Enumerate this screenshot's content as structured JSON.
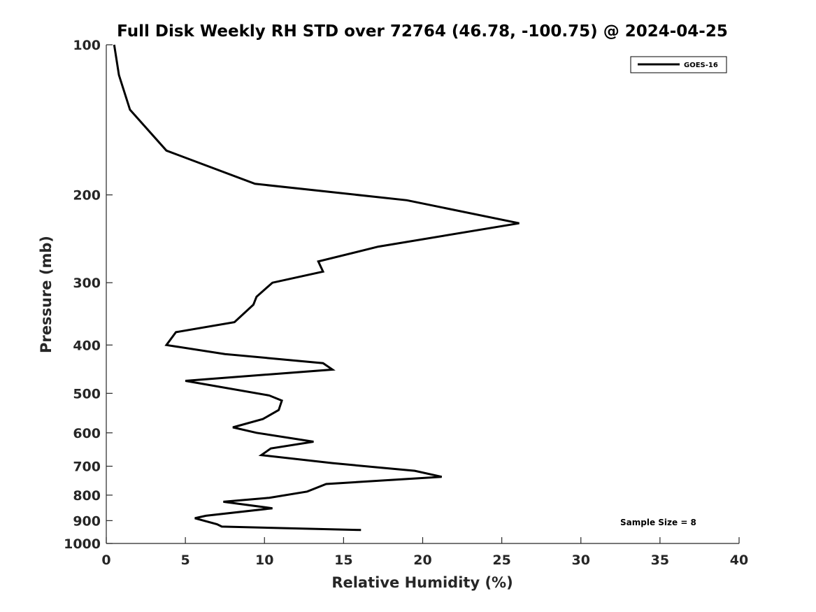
{
  "chart_data": {
    "type": "line",
    "title": "Full Disk Weekly RH STD over 72764 (46.78, -100.75) @ 2024-04-25",
    "xlabel": "Relative Humidity (%)",
    "ylabel": "Pressure (mb)",
    "xlim": [
      0,
      40
    ],
    "ylim": [
      100,
      1000
    ],
    "yscale": "log",
    "yaxis_inverted": true,
    "grid": false,
    "legend_placement": "top-right",
    "x_ticks": [
      "0",
      "5",
      "10",
      "15",
      "20",
      "25",
      "30",
      "35",
      "40"
    ],
    "y_ticks": [
      "100",
      "200",
      "300",
      "400",
      "500",
      "600",
      "700",
      "800",
      "900",
      "1000"
    ],
    "annotation": "Sample Size = 8",
    "series": [
      {
        "name": "GOES-16",
        "color": "#000000",
        "x": [
          0.5,
          0.8,
          1.5,
          3.8,
          9.4,
          19.0,
          26.1,
          17.2,
          13.4,
          13.7,
          10.5,
          9.5,
          9.3,
          8.1,
          4.4,
          3.8,
          7.5,
          13.7,
          14.3,
          5.0,
          10.3,
          11.1,
          10.9,
          9.9,
          8.0,
          9.5,
          13.1,
          10.4,
          9.8,
          14.3,
          17.4,
          19.5,
          21.2,
          13.9,
          12.7,
          10.3,
          7.4,
          10.5,
          6.3,
          5.6,
          7.0,
          7.3,
          16.1
        ],
        "y": [
          100,
          115,
          135,
          163,
          190,
          205,
          228,
          254,
          272,
          285,
          300,
          320,
          332,
          360,
          377,
          400,
          417,
          435,
          448,
          472,
          505,
          517,
          540,
          563,
          585,
          600,
          625,
          645,
          665,
          690,
          705,
          715,
          735,
          760,
          787,
          810,
          825,
          850,
          880,
          890,
          915,
          925,
          940
        ]
      }
    ]
  }
}
